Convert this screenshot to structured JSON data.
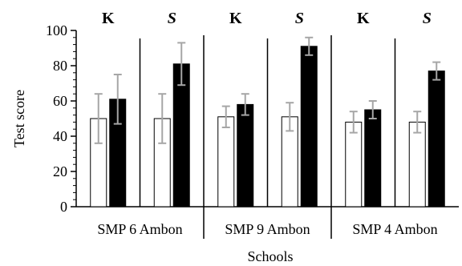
{
  "chart_data": {
    "type": "bar",
    "xlabel": "Schools",
    "ylabel": "Test score",
    "ylim": [
      0,
      100
    ],
    "yticks": [
      0,
      20,
      40,
      60,
      80,
      100
    ],
    "grid": false,
    "legend": "none",
    "colors": {
      "white_bar": "#ffffff",
      "black_bar": "#000000",
      "error_bar": "#a6a6a6",
      "axis": "#000000"
    },
    "groups": [
      {
        "name": "SMP 6 Ambon",
        "panels": [
          {
            "label": "K",
            "italic": false,
            "white": {
              "value": 50,
              "err": 14
            },
            "black": {
              "value": 61,
              "err": 14
            }
          },
          {
            "label": "S",
            "italic": true,
            "white": {
              "value": 50,
              "err": 14
            },
            "black": {
              "value": 81,
              "err": 12
            }
          }
        ]
      },
      {
        "name": "SMP 9 Ambon",
        "panels": [
          {
            "label": "K",
            "italic": false,
            "white": {
              "value": 51,
              "err": 6
            },
            "black": {
              "value": 58,
              "err": 6
            }
          },
          {
            "label": "S",
            "italic": true,
            "white": {
              "value": 51,
              "err": 8
            },
            "black": {
              "value": 91,
              "err": 5
            }
          }
        ]
      },
      {
        "name": "SMP 4 Ambon",
        "panels": [
          {
            "label": "K",
            "italic": false,
            "white": {
              "value": 48,
              "err": 6
            },
            "black": {
              "value": 55,
              "err": 5
            }
          },
          {
            "label": "S",
            "italic": true,
            "white": {
              "value": 48,
              "err": 6
            },
            "black": {
              "value": 77,
              "err": 5
            }
          }
        ]
      }
    ]
  }
}
